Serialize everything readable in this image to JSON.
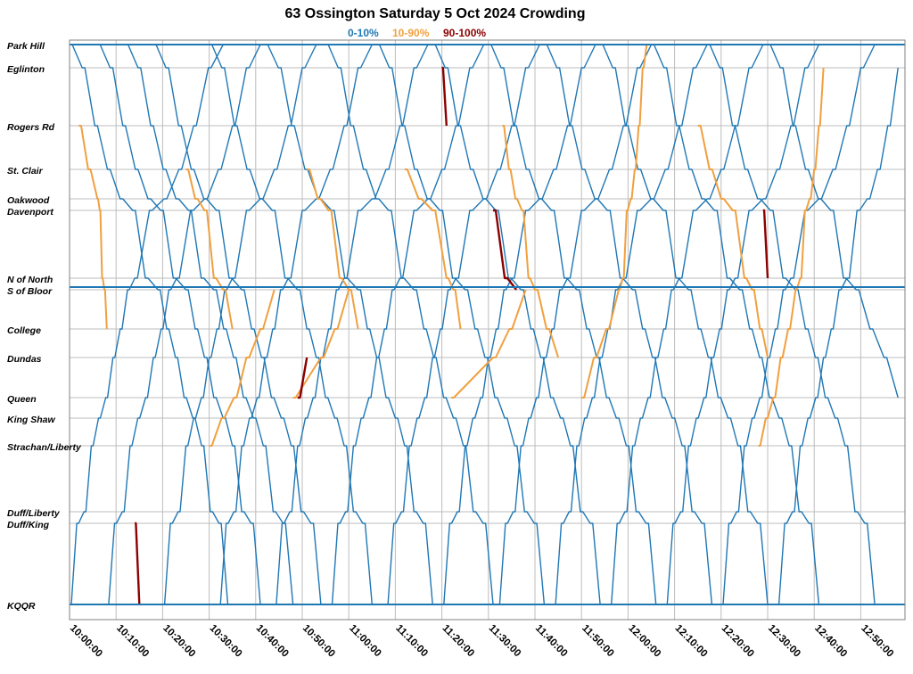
{
  "chart_data": {
    "type": "line",
    "title": "63 Ossington Saturday 5 Oct 2024 Crowding",
    "legend": {
      "placement": "top-center",
      "items": [
        {
          "label": "0-10%",
          "color": "#1f77b4"
        },
        {
          "label": "10-90%",
          "color": "#f0a040"
        },
        {
          "label": "90-100%",
          "color": "#8b0000"
        }
      ]
    },
    "x_axis": {
      "type": "time",
      "range": [
        "10:00:00",
        "12:58:00"
      ],
      "ticks": [
        "10:00:00",
        "10:10:00",
        "10:20:00",
        "10:30:00",
        "10:40:00",
        "10:50:00",
        "11:00:00",
        "11:10:00",
        "11:20:00",
        "11:30:00",
        "11:40:00",
        "11:50:00",
        "12:00:00",
        "12:10:00",
        "12:20:00",
        "12:30:00",
        "12:40:00",
        "12:50:00"
      ]
    },
    "y_axis": {
      "type": "category",
      "orientation": "top-to-bottom",
      "stops": [
        "Park Hill",
        "Eglinton",
        "Rogers Rd",
        "St. Clair",
        "Oakwood",
        "Davenport",
        "N of North",
        "S of Bloor",
        "College",
        "Dundas",
        "Queen",
        "King Shaw",
        "Strachan/Liberty",
        "Duff/Liberty",
        "Duff/King",
        "KQQR"
      ]
    },
    "grid": true,
    "series": [
      {
        "name": "0-10%",
        "color": "#1f77b4",
        "trips": [
          {
            "dir": "southbound",
            "x": [
              "10:00",
              "10:19",
              "10:34"
            ],
            "y": [
              "Park Hill",
              "S of Bloor",
              "KQQR"
            ]
          },
          {
            "dir": "southbound",
            "x": [
              "10:06",
              "10:25",
              "10:41"
            ],
            "y": [
              "Park Hill",
              "S of Bloor",
              "KQQR"
            ]
          },
          {
            "dir": "southbound",
            "x": [
              "10:12",
              "10:31",
              "10:48"
            ],
            "y": [
              "Park Hill",
              "S of Bloor",
              "KQQR"
            ]
          },
          {
            "dir": "southbound",
            "x": [
              "10:18",
              "10:37",
              "10:54"
            ],
            "y": [
              "Park Hill",
              "S of Bloor",
              "KQQR"
            ]
          },
          {
            "dir": "southbound",
            "x": [
              "10:30",
              "10:49",
              "11:05"
            ],
            "y": [
              "Park Hill",
              "S of Bloor",
              "KQQR"
            ]
          },
          {
            "dir": "southbound",
            "x": [
              "10:42",
              "11:02",
              "11:18"
            ],
            "y": [
              "Park Hill",
              "S of Bloor",
              "KQQR"
            ]
          },
          {
            "dir": "southbound",
            "x": [
              "10:55",
              "11:14",
              "11:31"
            ],
            "y": [
              "Park Hill",
              "S of Bloor",
              "KQQR"
            ]
          },
          {
            "dir": "southbound",
            "x": [
              "11:06",
              "11:25",
              "11:42"
            ],
            "y": [
              "Park Hill",
              "S of Bloor",
              "KQQR"
            ]
          },
          {
            "dir": "southbound",
            "x": [
              "11:18",
              "11:37",
              "11:54"
            ],
            "y": [
              "Park Hill",
              "S of Bloor",
              "KQQR"
            ]
          },
          {
            "dir": "southbound",
            "x": [
              "11:30",
              "11:49",
              "12:06"
            ],
            "y": [
              "Park Hill",
              "S of Bloor",
              "KQQR"
            ]
          },
          {
            "dir": "southbound",
            "x": [
              "11:42",
              "12:01",
              "12:18"
            ],
            "y": [
              "Park Hill",
              "S of Bloor",
              "KQQR"
            ]
          },
          {
            "dir": "southbound",
            "x": [
              "11:54",
              "12:13",
              "12:30"
            ],
            "y": [
              "Park Hill",
              "S of Bloor",
              "KQQR"
            ]
          },
          {
            "dir": "southbound",
            "x": [
              "12:05",
              "12:24",
              "12:41"
            ],
            "y": [
              "Park Hill",
              "S of Bloor",
              "KQQR"
            ]
          },
          {
            "dir": "southbound",
            "x": [
              "12:17",
              "12:36",
              "12:53"
            ],
            "y": [
              "Park Hill",
              "S of Bloor",
              "KQQR"
            ]
          },
          {
            "dir": "southbound",
            "x": [
              "12:30",
              "12:49",
              "12:58"
            ],
            "y": [
              "Park Hill",
              "S of Bloor",
              "Queen"
            ]
          },
          {
            "dir": "northbound",
            "x": [
              "10:00",
              "10:14",
              "10:33"
            ],
            "y": [
              "KQQR",
              "N of North",
              "Park Hill"
            ]
          },
          {
            "dir": "northbound",
            "x": [
              "10:08",
              "10:23",
              "10:41"
            ],
            "y": [
              "KQQR",
              "N of North",
              "Park Hill"
            ]
          },
          {
            "dir": "northbound",
            "x": [
              "10:20",
              "10:35",
              "10:53"
            ],
            "y": [
              "KQQR",
              "N of North",
              "Park Hill"
            ]
          },
          {
            "dir": "northbound",
            "x": [
              "10:32",
              "10:47",
              "11:05"
            ],
            "y": [
              "KQQR",
              "N of North",
              "Park Hill"
            ]
          },
          {
            "dir": "northbound",
            "x": [
              "10:44",
              "10:59",
              "11:17"
            ],
            "y": [
              "KQQR",
              "N of North",
              "Park Hill"
            ]
          },
          {
            "dir": "northbound",
            "x": [
              "10:56",
              "11:11",
              "11:29"
            ],
            "y": [
              "KQQR",
              "N of North",
              "Park Hill"
            ]
          },
          {
            "dir": "northbound",
            "x": [
              "11:08",
              "11:23",
              "11:41"
            ],
            "y": [
              "KQQR",
              "N of North",
              "Park Hill"
            ]
          },
          {
            "dir": "northbound",
            "x": [
              "11:20",
              "11:35",
              "11:53"
            ],
            "y": [
              "KQQR",
              "N of North",
              "Park Hill"
            ]
          },
          {
            "dir": "northbound",
            "x": [
              "11:32",
              "11:47",
              "12:05"
            ],
            "y": [
              "KQQR",
              "N of North",
              "Park Hill"
            ]
          },
          {
            "dir": "northbound",
            "x": [
              "11:44",
              "11:59",
              "12:17"
            ],
            "y": [
              "KQQR",
              "N of North",
              "Park Hill"
            ]
          },
          {
            "dir": "northbound",
            "x": [
              "11:56",
              "12:11",
              "12:29"
            ],
            "y": [
              "KQQR",
              "N of North",
              "Park Hill"
            ]
          },
          {
            "dir": "northbound",
            "x": [
              "12:08",
              "12:23",
              "12:41"
            ],
            "y": [
              "KQQR",
              "N of North",
              "Park Hill"
            ]
          },
          {
            "dir": "northbound",
            "x": [
              "12:20",
              "12:35",
              "12:53"
            ],
            "y": [
              "KQQR",
              "N of North",
              "Park Hill"
            ]
          },
          {
            "dir": "northbound",
            "x": [
              "12:32",
              "12:47",
              "12:58"
            ],
            "y": [
              "KQQR",
              "N of North",
              "Eglinton"
            ]
          }
        ]
      },
      {
        "name": "10-90%",
        "color": "#f0a040",
        "trips": [
          {
            "dir": "southbound",
            "x": [
              "10:02",
              "10:06",
              "10:08"
            ],
            "y": [
              "Rogers Rd",
              "Oakwood",
              "College"
            ]
          },
          {
            "dir": "southbound",
            "x": [
              "10:25",
              "10:31",
              "10:35"
            ],
            "y": [
              "St. Clair",
              "N of North",
              "College"
            ]
          },
          {
            "dir": "southbound",
            "x": [
              "10:51",
              "10:58",
              "11:02"
            ],
            "y": [
              "St. Clair",
              "N of North",
              "College"
            ]
          },
          {
            "dir": "southbound",
            "x": [
              "11:12",
              "11:21",
              "11:24"
            ],
            "y": [
              "St. Clair",
              "N of North",
              "College"
            ]
          },
          {
            "dir": "southbound",
            "x": [
              "11:33",
              "11:40",
              "11:45"
            ],
            "y": [
              "Rogers Rd",
              "S of Bloor",
              "Dundas"
            ]
          },
          {
            "dir": "southbound",
            "x": [
              "12:15",
              "12:25",
              "12:30"
            ],
            "y": [
              "Rogers Rd",
              "N of North",
              "Dundas"
            ]
          },
          {
            "dir": "northbound",
            "x": [
              "10:30",
              "10:38",
              "10:44"
            ],
            "y": [
              "Strachan/Liberty",
              "Dundas",
              "S of Bloor"
            ]
          },
          {
            "dir": "northbound",
            "x": [
              "10:48",
              "10:54",
              "11:00"
            ],
            "y": [
              "Queen",
              "Dundas",
              "S of Bloor"
            ]
          },
          {
            "dir": "northbound",
            "x": [
              "11:22",
              "11:31",
              "11:38"
            ],
            "y": [
              "Queen",
              "Dundas",
              "S of Bloor"
            ]
          },
          {
            "dir": "northbound",
            "x": [
              "11:50",
              "11:58",
              "12:04"
            ],
            "y": [
              "Queen",
              "S of Bloor",
              "Park Hill"
            ]
          },
          {
            "dir": "northbound",
            "x": [
              "12:28",
              "12:36",
              "12:42"
            ],
            "y": [
              "Strachan/Liberty",
              "S of Bloor",
              "Eglinton"
            ]
          }
        ]
      },
      {
        "name": "90-100%",
        "color": "#8b0000",
        "trips": [
          {
            "dir": "southbound",
            "x": [
              "10:14",
              "10:15"
            ],
            "y": [
              "Duff/King",
              "KQQR"
            ]
          },
          {
            "dir": "southbound",
            "x": [
              "11:20",
              "11:21"
            ],
            "y": [
              "Eglinton",
              "Rogers Rd"
            ]
          },
          {
            "dir": "southbound",
            "x": [
              "11:31",
              "11:36"
            ],
            "y": [
              "Davenport",
              "S of Bloor"
            ]
          },
          {
            "dir": "northbound",
            "x": [
              "10:49",
              "10:51"
            ],
            "y": [
              "Queen",
              "Dundas"
            ]
          },
          {
            "dir": "southbound",
            "x": [
              "12:29",
              "12:30"
            ],
            "y": [
              "Davenport",
              "N of North"
            ]
          }
        ]
      }
    ]
  }
}
